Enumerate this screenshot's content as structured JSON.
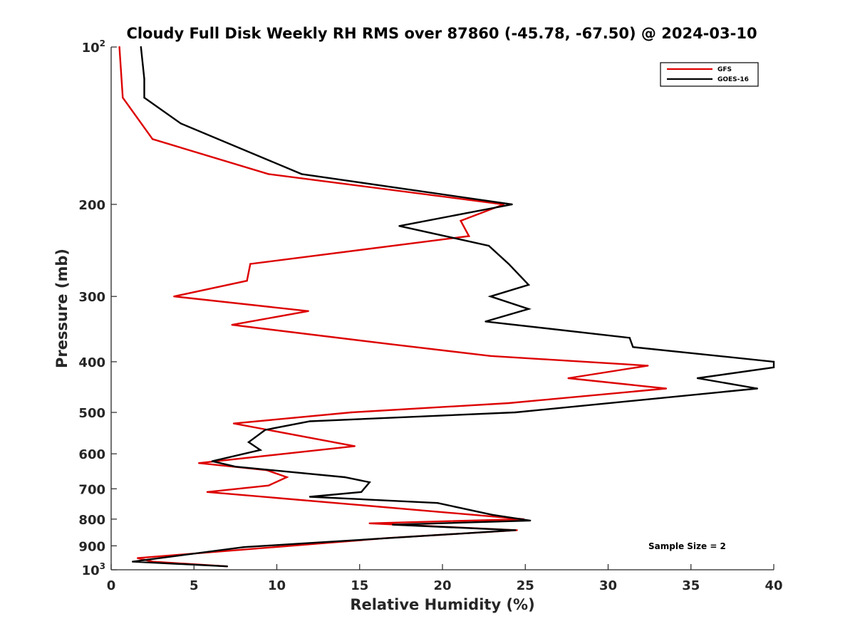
{
  "chart_data": {
    "type": "line",
    "title": "Cloudy Full Disk Weekly RH RMS over 87860 (-45.78, -67.50) @ 2024-03-10",
    "xlabel": "Relative Humidity (%)",
    "ylabel": "Pressure (mb)",
    "xlim": [
      0,
      40
    ],
    "ylim": [
      100,
      1000
    ],
    "yscale": "log",
    "y_reversed": true,
    "grid": false,
    "legend_position": "top-right",
    "x_ticks": [
      "0",
      "5",
      "10",
      "15",
      "20",
      "25",
      "30",
      "35",
      "40"
    ],
    "y_ticks": [
      {
        "value": 100,
        "base": "10",
        "exp": "2"
      },
      {
        "value": 200,
        "label": "200"
      },
      {
        "value": 300,
        "label": "300"
      },
      {
        "value": 400,
        "label": "400"
      },
      {
        "value": 500,
        "label": "500"
      },
      {
        "value": 600,
        "label": "600"
      },
      {
        "value": 700,
        "label": "700"
      },
      {
        "value": 800,
        "label": "800"
      },
      {
        "value": 900,
        "label": "900"
      },
      {
        "value": 1000,
        "base": "10",
        "exp": "3"
      }
    ],
    "annotation": "Sample Size = 2",
    "series": [
      {
        "name": "GFS",
        "color": "#dd0000",
        "points": [
          [
            0.5,
            100
          ],
          [
            0.7,
            125
          ],
          [
            2.5,
            150
          ],
          [
            9.5,
            175
          ],
          [
            23.7,
            200
          ],
          [
            21.1,
            215
          ],
          [
            21.6,
            230
          ],
          [
            8.4,
            260
          ],
          [
            8.2,
            280
          ],
          [
            3.8,
            300
          ],
          [
            11.9,
            320
          ],
          [
            7.3,
            340
          ],
          [
            16.8,
            370
          ],
          [
            22.9,
            390
          ],
          [
            32.4,
            407
          ],
          [
            27.6,
            430
          ],
          [
            33.5,
            450
          ],
          [
            24.0,
            480
          ],
          [
            14.5,
            500
          ],
          [
            7.4,
            525
          ],
          [
            14.7,
            580
          ],
          [
            5.3,
            625
          ],
          [
            9.4,
            645
          ],
          [
            10.6,
            665
          ],
          [
            9.5,
            690
          ],
          [
            5.8,
            710
          ],
          [
            14.6,
            750
          ],
          [
            24.9,
            800
          ],
          [
            15.6,
            815
          ],
          [
            24.5,
            840
          ],
          [
            16.6,
            870
          ],
          [
            1.6,
            950
          ],
          [
            2.5,
            965
          ],
          [
            7.0,
            985
          ]
        ]
      },
      {
        "name": "GOES-16",
        "color": "#000000",
        "points": [
          [
            1.8,
            100
          ],
          [
            2.0,
            115
          ],
          [
            2.0,
            125
          ],
          [
            4.2,
            140
          ],
          [
            11.5,
            175
          ],
          [
            24.2,
            200
          ],
          [
            17.4,
            220
          ],
          [
            22.8,
            240
          ],
          [
            24.0,
            260
          ],
          [
            25.2,
            285
          ],
          [
            22.9,
            300
          ],
          [
            25.2,
            317
          ],
          [
            22.6,
            335
          ],
          [
            31.3,
            360
          ],
          [
            31.5,
            375
          ],
          [
            40.0,
            400
          ],
          [
            40.0,
            410
          ],
          [
            35.4,
            430
          ],
          [
            39.0,
            450
          ],
          [
            33.0,
            470
          ],
          [
            24.4,
            500
          ],
          [
            12.0,
            520
          ],
          [
            9.3,
            540
          ],
          [
            8.3,
            570
          ],
          [
            9.0,
            590
          ],
          [
            6.1,
            620
          ],
          [
            7.5,
            635
          ],
          [
            14.1,
            665
          ],
          [
            15.6,
            680
          ],
          [
            15.1,
            710
          ],
          [
            12.0,
            725
          ],
          [
            19.7,
            745
          ],
          [
            23.0,
            785
          ],
          [
            25.3,
            805
          ],
          [
            17.0,
            820
          ],
          [
            24.4,
            840
          ],
          [
            8.0,
            905
          ],
          [
            1.3,
            965
          ],
          [
            7.0,
            985
          ]
        ]
      }
    ]
  }
}
